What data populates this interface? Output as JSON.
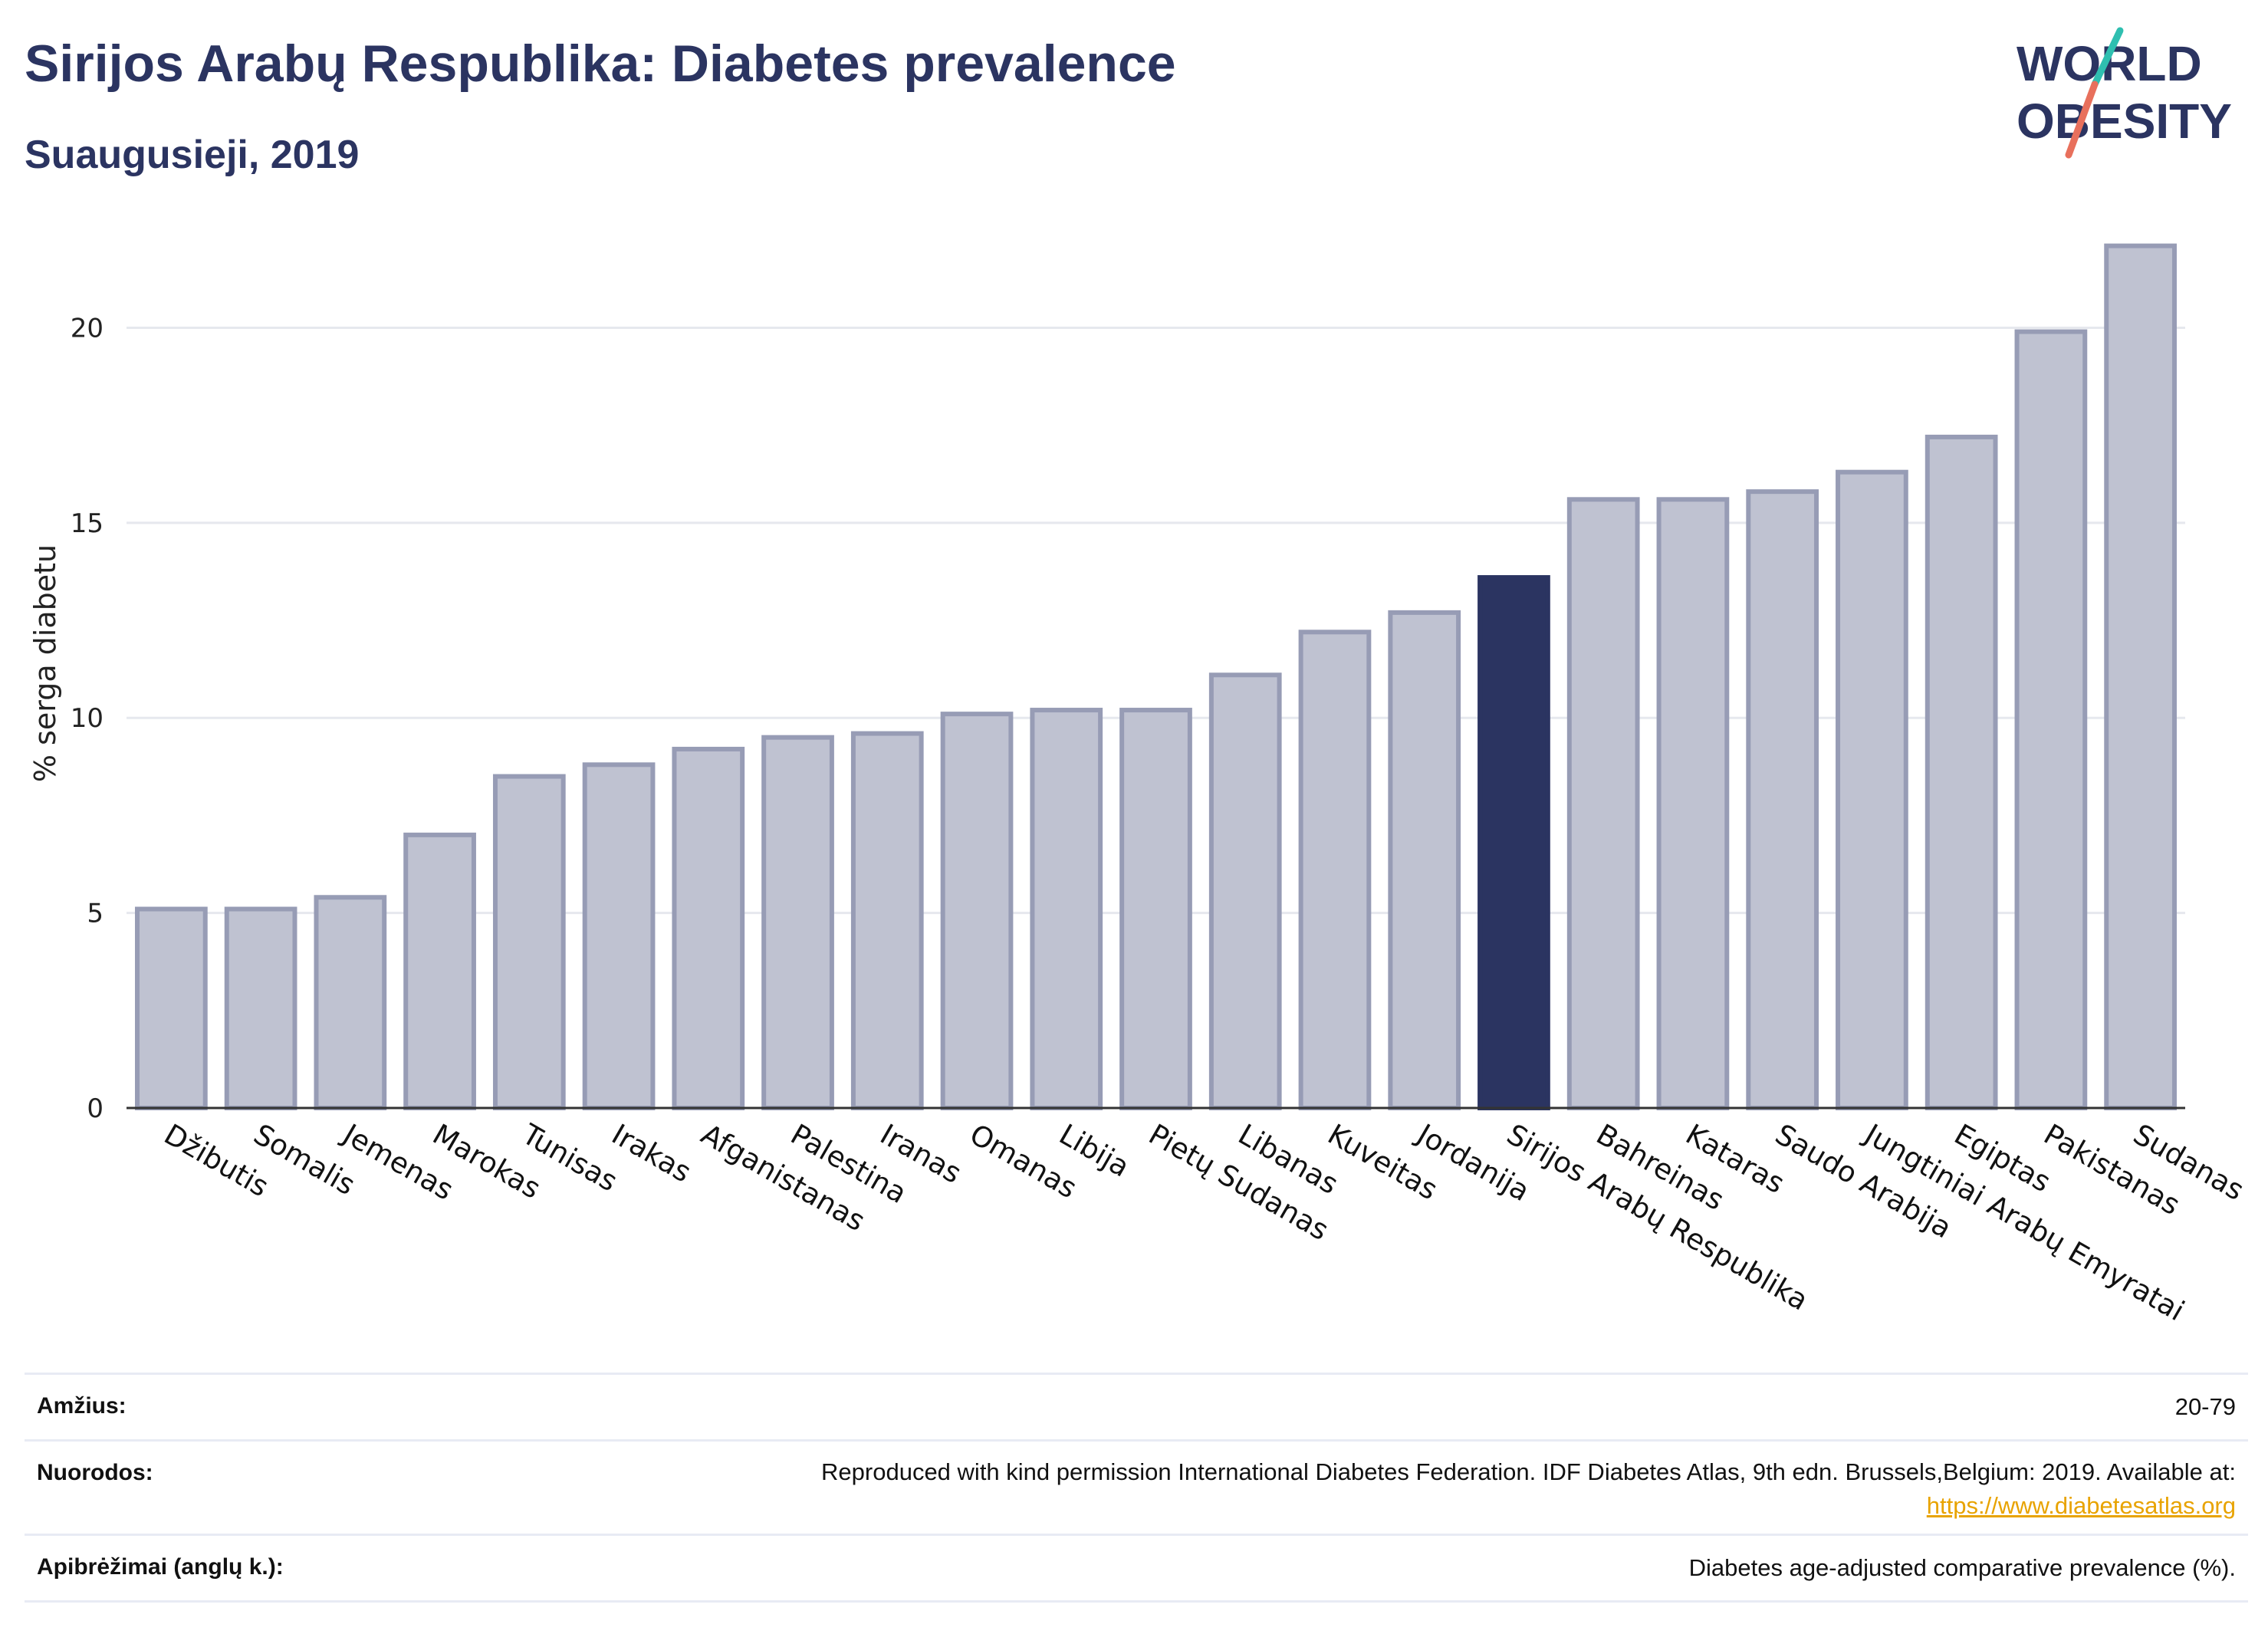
{
  "header": {
    "title": "Sirijos Arabų Respublika: Diabetes prevalence",
    "subtitle": "Suaugusieji, 2019"
  },
  "logo": {
    "line1": "WORLD",
    "line2": "OBESITY"
  },
  "colors": {
    "bar": "#bfc2d1",
    "bar_stroke": "#979cb5",
    "highlight": "#2b3461",
    "grid": "#e6e8ee",
    "title": "#2b3461"
  },
  "chart_data": {
    "type": "bar",
    "ylabel": "% serga diabetu",
    "xlabel": "",
    "ylim": [
      0,
      22.8
    ],
    "yticks": [
      0,
      5,
      10,
      15,
      20
    ],
    "grid": true,
    "highlight": "Sirijos Arabų Respublika",
    "categories": [
      "Džibutis",
      "Somalis",
      "Jemenas",
      "Marokas",
      "Tunisas",
      "Irakas",
      "Afganistanas",
      "Palestina",
      "Iranas",
      "Omanas",
      "Libija",
      "Pietų Sudanas",
      "Libanas",
      "Kuveitas",
      "Jordanija",
      "Sirijos Arabų Respublika",
      "Bahreinas",
      "Kataras",
      "Saudo Arabija",
      "Jungtiniai Arabų Emyratai",
      "Egiptas",
      "Pakistanas",
      "Sudanas"
    ],
    "values": [
      5.1,
      5.1,
      5.4,
      7.0,
      8.5,
      8.8,
      9.2,
      9.5,
      9.6,
      10.1,
      10.2,
      10.2,
      11.1,
      12.2,
      12.7,
      13.6,
      15.6,
      15.6,
      15.8,
      16.3,
      17.2,
      19.9,
      22.1
    ]
  },
  "footer": {
    "age_label": "Amžius:",
    "age_value": "20-79",
    "refs_label": "Nuorodos:",
    "refs_text": "Reproduced with kind permission International Diabetes Federation. IDF Diabetes Atlas, 9th edn. Brussels,Belgium: 2019. Available at:",
    "refs_link": "https://www.diabetesatlas.org",
    "defs_label": "Apibrėžimai (anglų k.):",
    "defs_value": "Diabetes age-adjusted comparative prevalence (%)."
  }
}
